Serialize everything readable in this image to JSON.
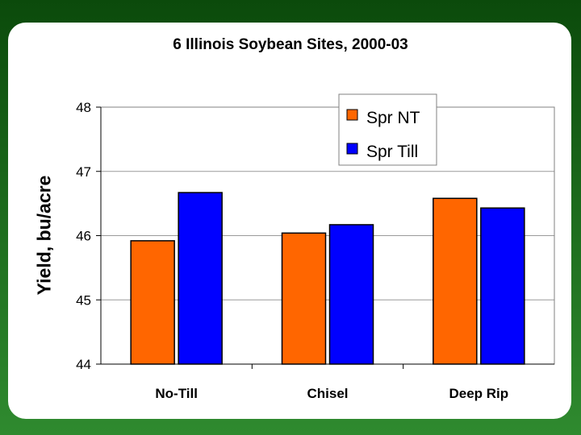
{
  "chart_data": {
    "type": "bar",
    "title": "6 Illinois Soybean Sites, 2000-03",
    "xlabel": "",
    "ylabel": "Yield, bu/acre",
    "categories": [
      "No-Till",
      "Chisel",
      "Deep Rip"
    ],
    "series": [
      {
        "name": "Spr NT",
        "values": [
          45.92,
          46.04,
          46.58
        ],
        "color": "#ff6600"
      },
      {
        "name": "Spr Till",
        "values": [
          46.67,
          46.17,
          46.43
        ],
        "color": "#0000ff"
      }
    ],
    "ylim": [
      44,
      48
    ],
    "yticks": [
      "44",
      "45",
      "46",
      "47",
      "48"
    ],
    "grid": true,
    "legend": "top-right"
  }
}
